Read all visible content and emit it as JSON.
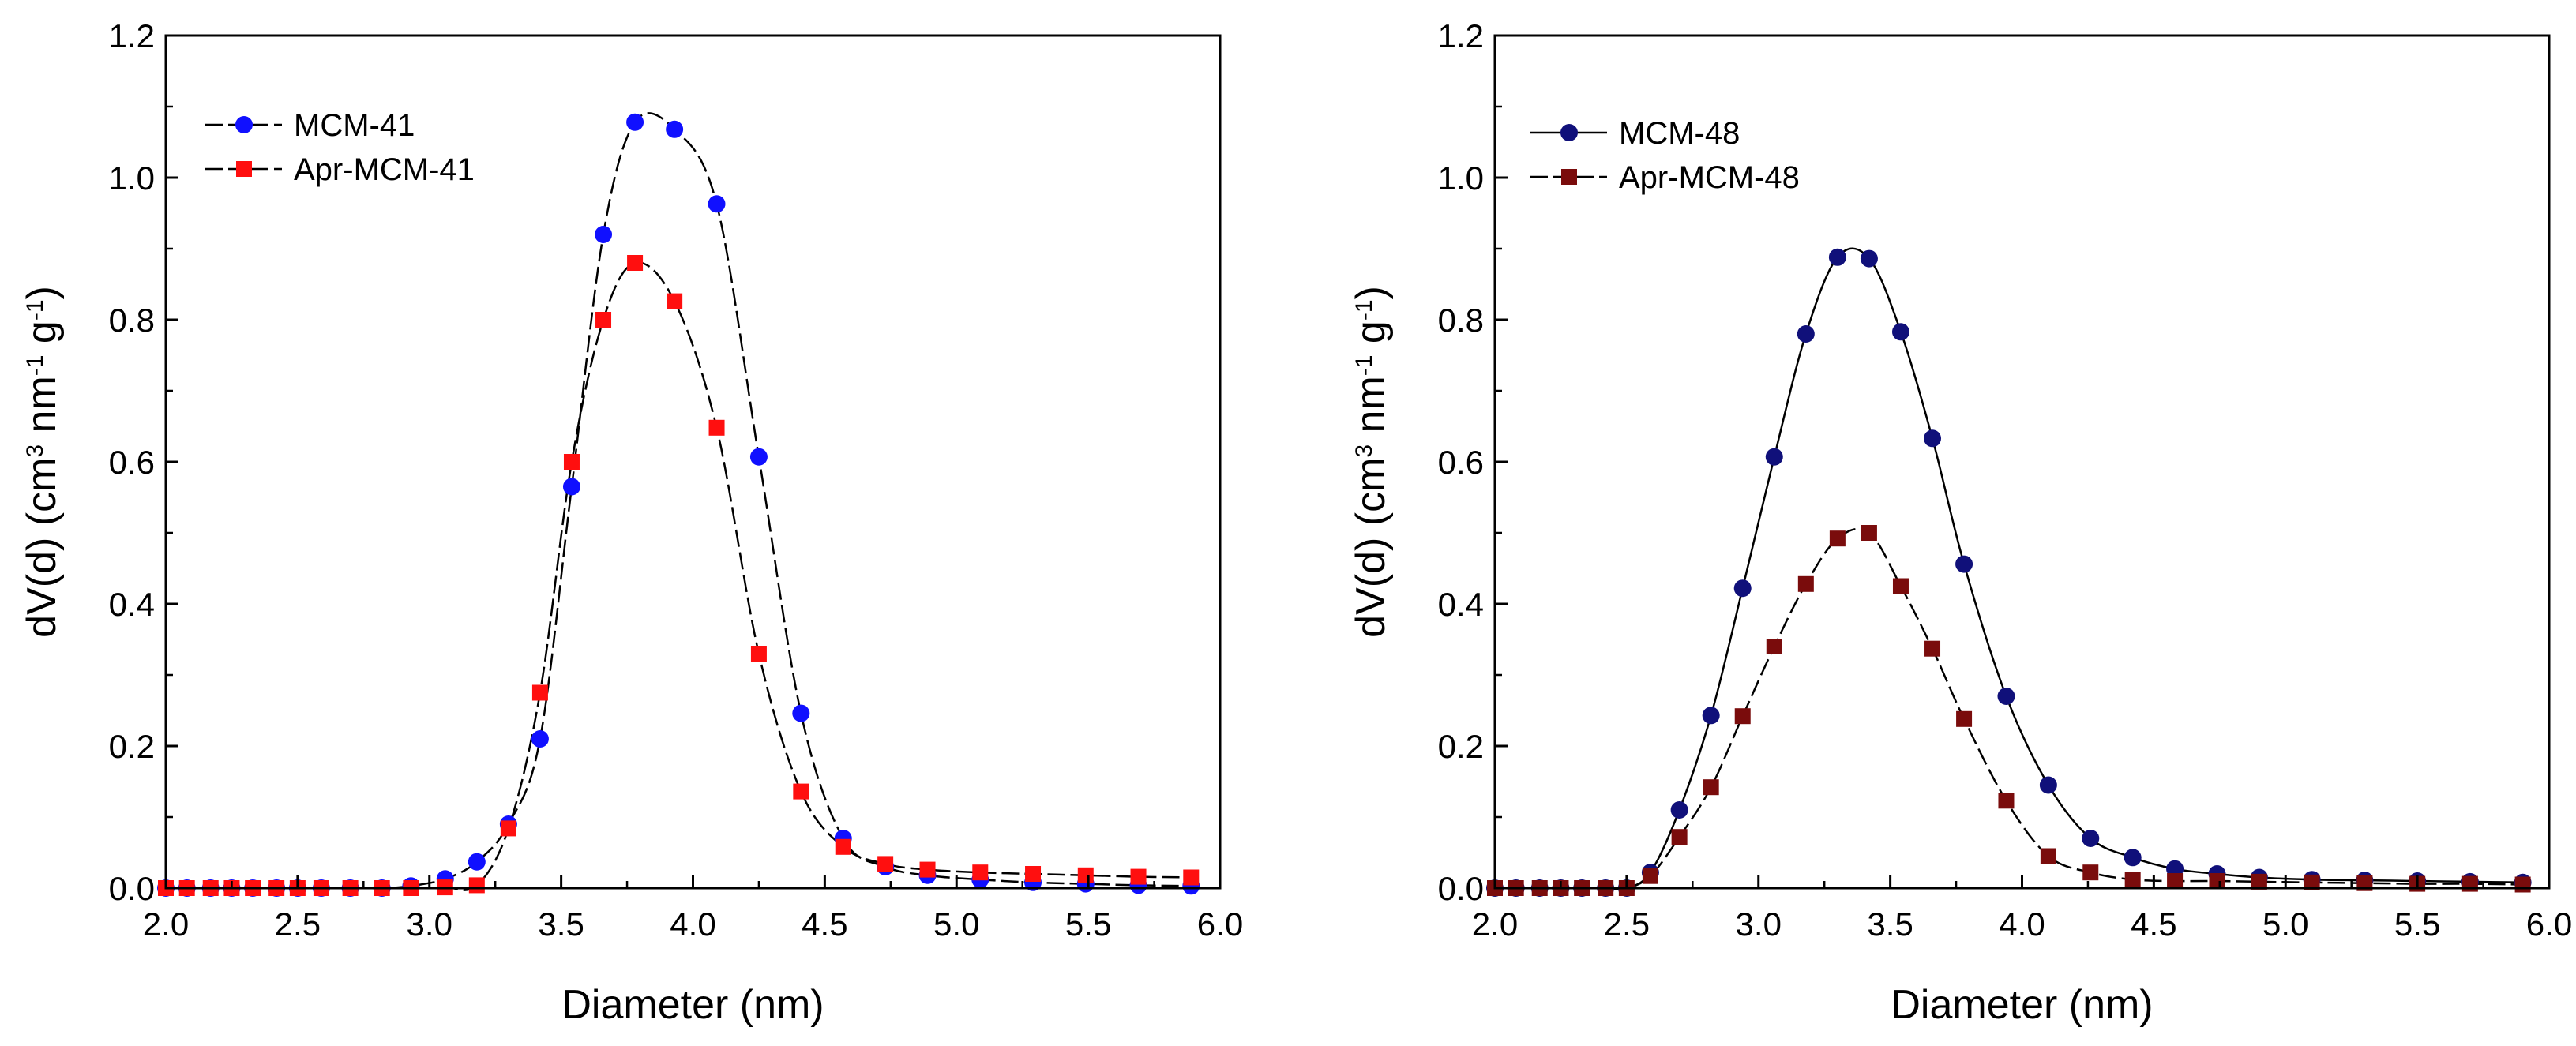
{
  "chart_data": [
    {
      "id": "left",
      "type": "scatter",
      "xlabel": "Diameter (nm)",
      "ylabel": {
        "pre": "dV(d) (cm",
        "sup1": "3",
        "mid1": " nm",
        "sup2": "-1",
        "mid2": " g",
        "sup3": "-1",
        "post": ")"
      },
      "xlim": [
        2.0,
        6.0
      ],
      "ylim": [
        0,
        1.2
      ],
      "xticks": [
        "2.0",
        "2.5",
        "3.0",
        "3.5",
        "4.0",
        "4.5",
        "5.0",
        "5.5",
        "6.0"
      ],
      "yticks": [
        "0.0",
        "0.2",
        "0.4",
        "0.6",
        "0.8",
        "1.0",
        "1.2"
      ],
      "legend_position": "top-left",
      "series": [
        {
          "name": "MCM-41",
          "marker": "circle",
          "color": "#1010ff",
          "line": "dashed",
          "x": [
            2.0,
            2.08,
            2.17,
            2.25,
            2.33,
            2.42,
            2.5,
            2.59,
            2.7,
            2.82,
            2.93,
            3.06,
            3.18,
            3.3,
            3.42,
            3.54,
            3.66,
            3.78,
            3.93,
            4.09,
            4.25,
            4.41,
            4.57,
            4.73,
            4.89,
            5.09,
            5.29,
            5.49,
            5.69,
            5.89
          ],
          "y": [
            0.0,
            0.0,
            0.0,
            0.0,
            0.0,
            0.0,
            0.0,
            0.0,
            0.0,
            0.0,
            0.003,
            0.013,
            0.037,
            0.09,
            0.21,
            0.565,
            0.92,
            1.078,
            1.068,
            0.963,
            0.607,
            0.246,
            0.07,
            0.03,
            0.018,
            0.012,
            0.008,
            0.006,
            0.004,
            0.003
          ]
        },
        {
          "name": "Apr-MCM-41",
          "marker": "square",
          "color": "#ff0f0f",
          "line": "dashed",
          "x": [
            2.0,
            2.08,
            2.17,
            2.25,
            2.33,
            2.42,
            2.5,
            2.59,
            2.7,
            2.82,
            2.93,
            3.06,
            3.18,
            3.3,
            3.42,
            3.54,
            3.66,
            3.78,
            3.93,
            4.09,
            4.25,
            4.41,
            4.57,
            4.73,
            4.89,
            5.09,
            5.29,
            5.49,
            5.69,
            5.89
          ],
          "y": [
            0.0,
            0.0,
            0.0,
            0.0,
            0.0,
            0.0,
            0.0,
            0.0,
            0.0,
            0.0,
            0.0,
            0.001,
            0.004,
            0.084,
            0.275,
            0.6,
            0.8,
            0.88,
            0.826,
            0.648,
            0.33,
            0.136,
            0.058,
            0.034,
            0.026,
            0.022,
            0.02,
            0.018,
            0.016,
            0.015
          ]
        }
      ]
    },
    {
      "id": "right",
      "type": "scatter",
      "xlabel": "Diameter (nm)",
      "ylabel": {
        "pre": "dV(d) (cm",
        "sup1": "3",
        "mid1": " nm",
        "sup2": "-1",
        "mid2": " g",
        "sup3": "-1",
        "post": ")"
      },
      "xlim": [
        2.0,
        6.0
      ],
      "ylim": [
        0,
        1.2
      ],
      "xticks": [
        "2.0",
        "2.5",
        "3.0",
        "3.5",
        "4.0",
        "4.5",
        "5.0",
        "5.5",
        "6.0"
      ],
      "yticks": [
        "0.0",
        "0.2",
        "0.4",
        "0.6",
        "0.8",
        "1.0",
        "1.2"
      ],
      "legend_position": "top-left",
      "series": [
        {
          "name": "MCM-48",
          "marker": "circle",
          "color": "#10107a",
          "line": "solid",
          "x": [
            2.0,
            2.08,
            2.17,
            2.25,
            2.33,
            2.42,
            2.5,
            2.59,
            2.7,
            2.82,
            2.94,
            3.06,
            3.18,
            3.3,
            3.42,
            3.54,
            3.66,
            3.78,
            3.94,
            4.1,
            4.26,
            4.42,
            4.58,
            4.74,
            4.9,
            5.1,
            5.3,
            5.5,
            5.7,
            5.9
          ],
          "y": [
            0.0,
            0.0,
            0.0,
            0.0,
            0.0,
            0.0,
            0.0,
            0.022,
            0.11,
            0.243,
            0.422,
            0.607,
            0.78,
            0.888,
            0.886,
            0.783,
            0.633,
            0.456,
            0.27,
            0.145,
            0.07,
            0.043,
            0.027,
            0.02,
            0.015,
            0.012,
            0.011,
            0.01,
            0.009,
            0.008
          ]
        },
        {
          "name": "Apr-MCM-48",
          "marker": "square",
          "color": "#7a0c0c",
          "line": "dashed",
          "x": [
            2.0,
            2.08,
            2.17,
            2.25,
            2.33,
            2.42,
            2.5,
            2.59,
            2.7,
            2.82,
            2.94,
            3.06,
            3.18,
            3.3,
            3.42,
            3.54,
            3.66,
            3.78,
            3.94,
            4.1,
            4.26,
            4.42,
            4.58,
            4.74,
            4.9,
            5.1,
            5.3,
            5.5,
            5.7,
            5.9
          ],
          "y": [
            0.0,
            0.0,
            0.0,
            0.0,
            0.0,
            0.0,
            0.0,
            0.017,
            0.072,
            0.142,
            0.242,
            0.34,
            0.428,
            0.492,
            0.5,
            0.425,
            0.337,
            0.238,
            0.123,
            0.045,
            0.022,
            0.012,
            0.01,
            0.01,
            0.009,
            0.008,
            0.007,
            0.006,
            0.006,
            0.005
          ]
        }
      ]
    }
  ]
}
